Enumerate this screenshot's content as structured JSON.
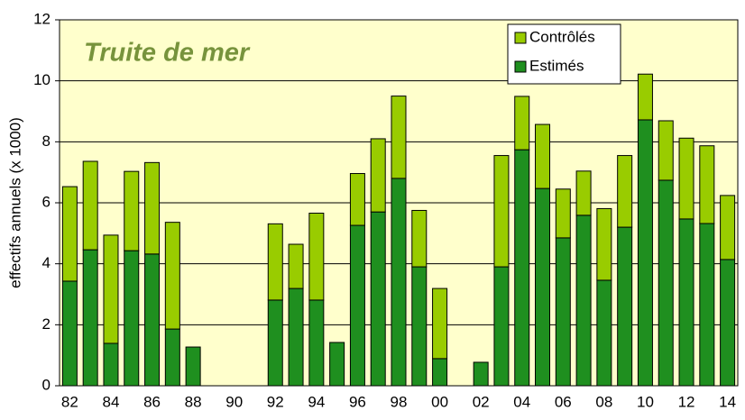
{
  "chart_data": {
    "type": "stacked_bar",
    "title": "Truite de mer",
    "y_label": "effectifs annuels (x 1000)",
    "categories": [
      "82",
      null,
      "84",
      null,
      "86",
      null,
      "88",
      null,
      "90",
      null,
      "92",
      null,
      "94",
      null,
      "96",
      null,
      "98",
      null,
      "00",
      null,
      "02",
      null,
      "04",
      null,
      "06",
      null,
      "08",
      null,
      "10",
      null,
      "12",
      null,
      "14"
    ],
    "series": [
      {
        "name": "Estimés",
        "color": "#1f8f1f",
        "values": [
          3.43,
          4.46,
          1.39,
          4.43,
          4.32,
          1.86,
          1.27,
          0,
          0,
          0,
          2.81,
          3.19,
          2.81,
          1.42,
          5.26,
          5.7,
          6.8,
          3.9,
          0.89,
          0,
          0.77,
          3.9,
          7.74,
          6.47,
          4.85,
          5.59,
          3.46,
          5.2,
          8.72,
          6.74,
          5.47,
          5.32,
          4.14
        ]
      },
      {
        "name": "Contrôlés",
        "color": "#99cc00",
        "values": [
          3.1,
          2.9,
          3.55,
          2.6,
          3.0,
          3.5,
          0,
          0,
          0,
          0,
          2.5,
          1.45,
          2.85,
          0,
          1.7,
          2.4,
          2.7,
          1.85,
          2.3,
          0,
          0,
          3.65,
          1.75,
          2.1,
          1.6,
          1.45,
          2.35,
          2.35,
          1.5,
          1.95,
          2.65,
          2.55,
          2.1
        ]
      }
    ],
    "ylim": [
      0,
      12
    ],
    "yticks": [
      0,
      2,
      4,
      6,
      8,
      10,
      12
    ],
    "grid": true,
    "legend": "top-right"
  }
}
